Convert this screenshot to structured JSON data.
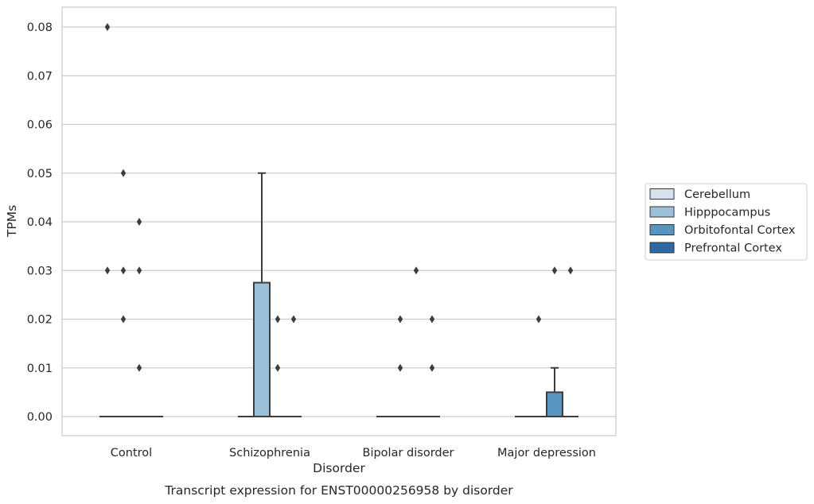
{
  "chart_data": {
    "type": "box",
    "caption": "Transcript expression for ENST00000256958 by disorder",
    "xlabel": "Disorder",
    "ylabel": "TPMs",
    "categories": [
      "Control",
      "Schizophrenia",
      "Bipolar disorder",
      "Major depression"
    ],
    "ylim": [
      -0.004,
      0.084
    ],
    "yticks": [
      0.0,
      0.01,
      0.02,
      0.03,
      0.04,
      0.05,
      0.06,
      0.07,
      0.08
    ],
    "ytick_labels": [
      "0.00",
      "0.01",
      "0.02",
      "0.03",
      "0.04",
      "0.05",
      "0.06",
      "0.07",
      "0.08"
    ],
    "grid": true,
    "legend_position": "right",
    "series": [
      {
        "name": "Cerebellum",
        "color": "#d4e1ee",
        "boxes": [
          {
            "q1": 0,
            "median": 0,
            "q3": 0,
            "whisker_low": 0,
            "whisker_high": 0,
            "outliers": [
              0.03,
              0.08
            ]
          },
          {
            "q1": 0,
            "median": 0,
            "q3": 0,
            "whisker_low": 0,
            "whisker_high": 0,
            "outliers": []
          },
          {
            "q1": 0,
            "median": 0,
            "q3": 0,
            "whisker_low": 0,
            "whisker_high": 0,
            "outliers": []
          },
          {
            "q1": 0,
            "median": 0,
            "q3": 0,
            "whisker_low": 0,
            "whisker_high": 0,
            "outliers": []
          }
        ]
      },
      {
        "name": "Hipppocampus",
        "color": "#9bc0d9",
        "boxes": [
          {
            "q1": 0,
            "median": 0,
            "q3": 0,
            "whisker_low": 0,
            "whisker_high": 0,
            "outliers": [
              0.02,
              0.03,
              0.05
            ]
          },
          {
            "q1": 0,
            "median": 0,
            "q3": 0.0275,
            "whisker_low": 0,
            "whisker_high": 0.05,
            "outliers": []
          },
          {
            "q1": 0,
            "median": 0,
            "q3": 0,
            "whisker_low": 0,
            "whisker_high": 0,
            "outliers": [
              0.01,
              0.02
            ]
          },
          {
            "q1": 0,
            "median": 0,
            "q3": 0,
            "whisker_low": 0,
            "whisker_high": 0,
            "outliers": [
              0.02
            ]
          }
        ]
      },
      {
        "name": "Orbitofontal Cortex",
        "color": "#5896c2",
        "boxes": [
          {
            "q1": 0,
            "median": 0,
            "q3": 0,
            "whisker_low": 0,
            "whisker_high": 0,
            "outliers": [
              0.01,
              0.03,
              0.04
            ]
          },
          {
            "q1": 0,
            "median": 0,
            "q3": 0,
            "whisker_low": 0,
            "whisker_high": 0,
            "outliers": [
              0.01,
              0.02
            ]
          },
          {
            "q1": 0,
            "median": 0,
            "q3": 0,
            "whisker_low": 0,
            "whisker_high": 0,
            "outliers": [
              0.03
            ]
          },
          {
            "q1": 0,
            "median": 0,
            "q3": 0.005,
            "whisker_low": 0,
            "whisker_high": 0.01,
            "outliers": [
              0.03
            ]
          }
        ]
      },
      {
        "name": "Prefrontal Cortex",
        "color": "#2d6aa5",
        "boxes": [
          {
            "q1": 0,
            "median": 0,
            "q3": 0,
            "whisker_low": 0,
            "whisker_high": 0,
            "outliers": []
          },
          {
            "q1": 0,
            "median": 0,
            "q3": 0,
            "whisker_low": 0,
            "whisker_high": 0,
            "outliers": [
              0.02
            ]
          },
          {
            "q1": 0,
            "median": 0,
            "q3": 0,
            "whisker_low": 0,
            "whisker_high": 0,
            "outliers": [
              0.01,
              0.02
            ]
          },
          {
            "q1": 0,
            "median": 0,
            "q3": 0,
            "whisker_low": 0,
            "whisker_high": 0,
            "outliers": [
              0.03
            ]
          }
        ]
      }
    ]
  }
}
